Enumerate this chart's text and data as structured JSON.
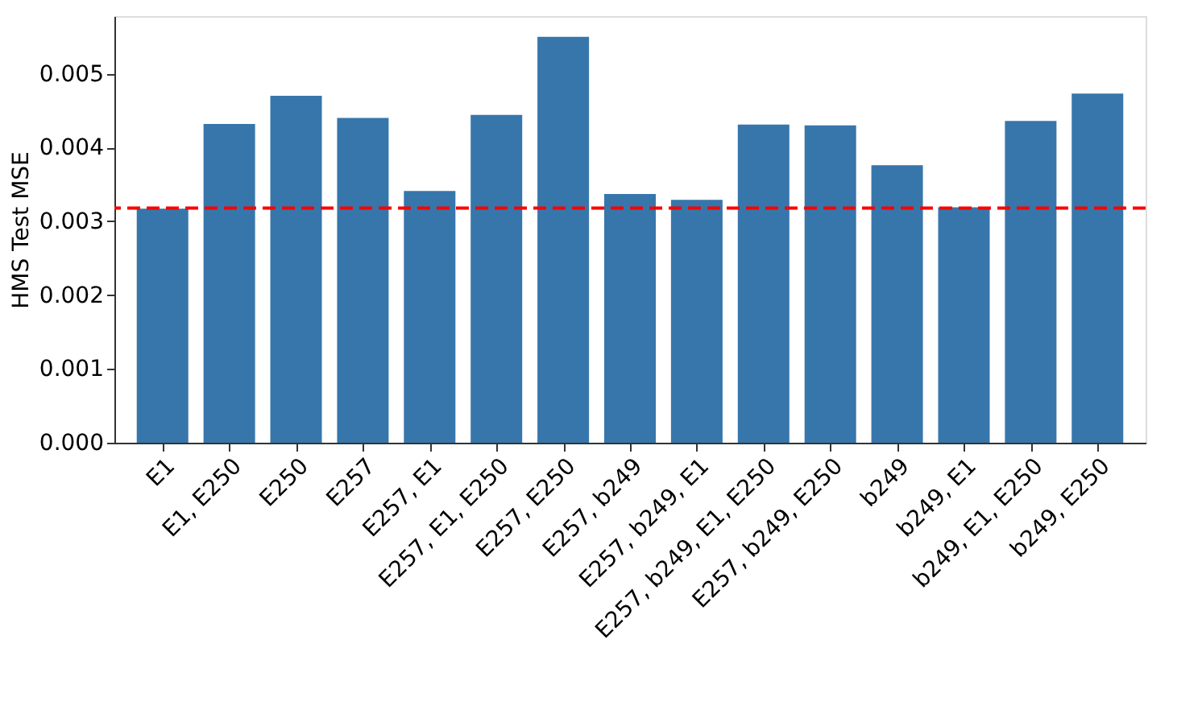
{
  "chart_data": {
    "type": "bar",
    "ylabel": "HMS Test MSE",
    "categories": [
      "E1",
      "E1, E250",
      "E250",
      "E257",
      "E257, E1",
      "E257, E1, E250",
      "E257, E250",
      "E257, b249",
      "E257, b249, E1",
      "E257, b249, E1, E250",
      "E257, b249, E250",
      "b249",
      "b249, E1",
      "b249, E1, E250",
      "b249, E250"
    ],
    "values": [
      0.00317,
      0.00432,
      0.0047,
      0.0044,
      0.00341,
      0.00444,
      0.0055,
      0.00337,
      0.00329,
      0.00431,
      0.0043,
      0.00376,
      0.00319,
      0.00436,
      0.00473
    ],
    "color": "#3776ab",
    "ylim": [
      0,
      0.00578
    ],
    "yticks": [
      {
        "value": 0,
        "label": "0.000"
      },
      0.001,
      0.002,
      0.003,
      0.004,
      0.005
    ],
    "ref_lines": [
      {
        "axis": "y",
        "value": 0.00318,
        "color": "#ff0000",
        "line_style": "dashed"
      }
    ],
    "grid": false
  }
}
